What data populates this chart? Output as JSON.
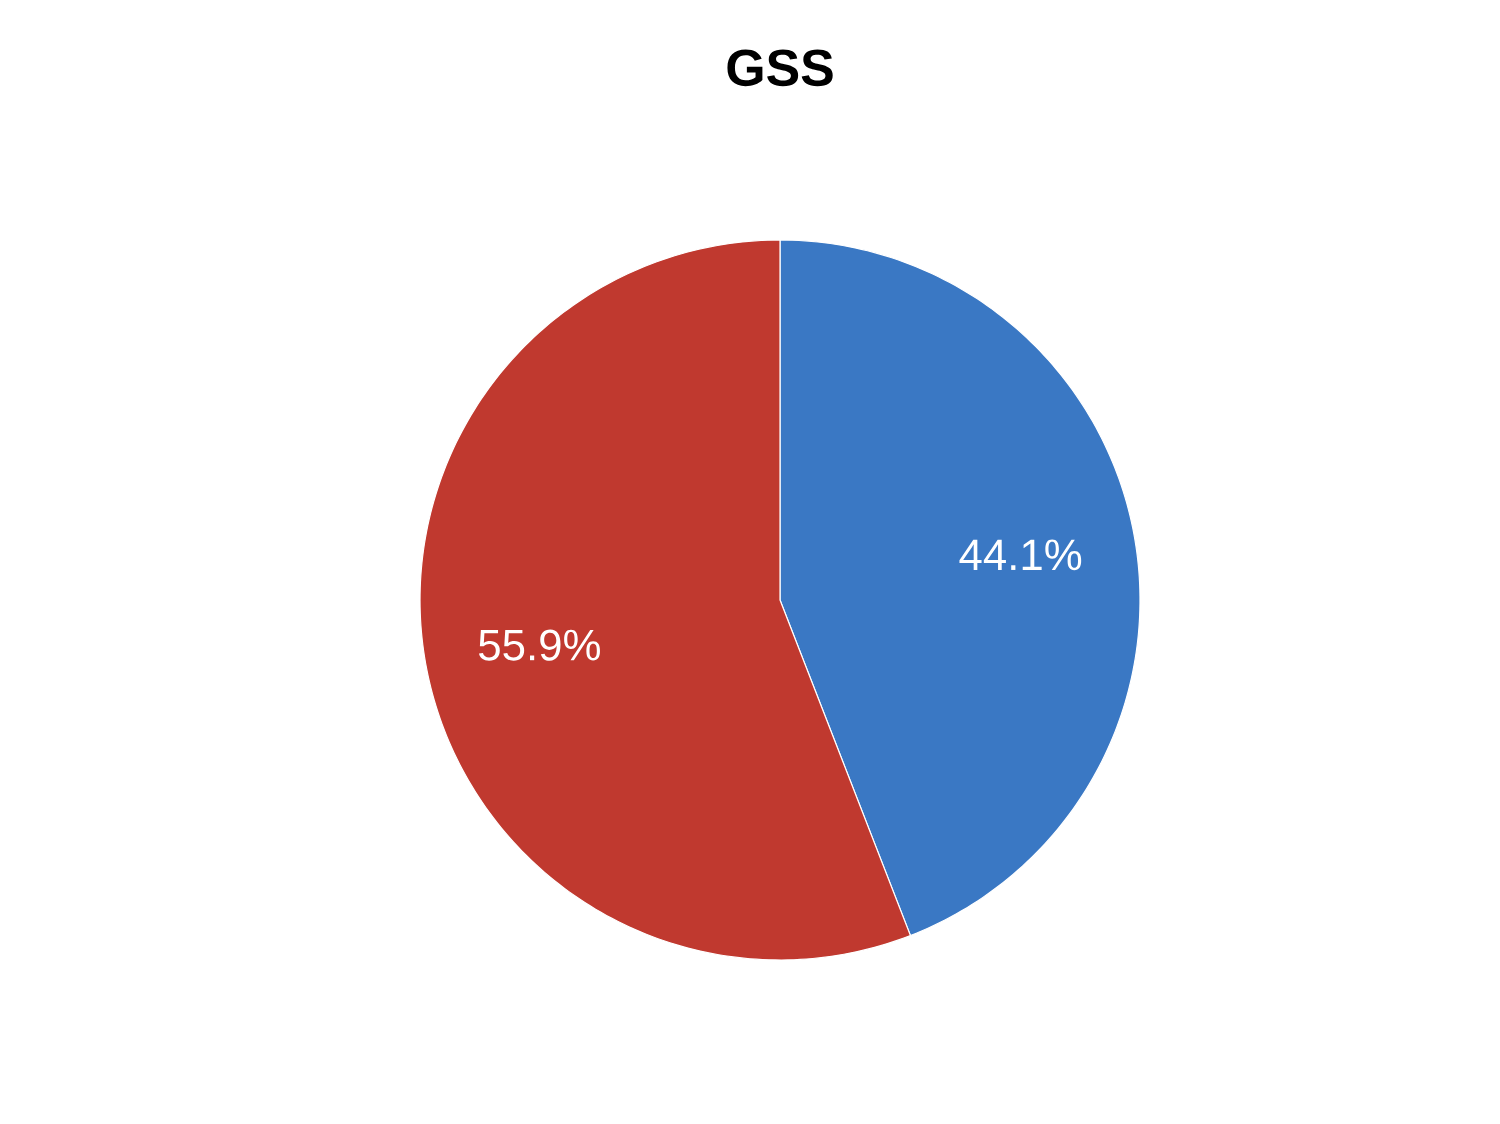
{
  "chart_data": {
    "type": "pie",
    "title": "GSS",
    "categories": [
      null,
      null
    ],
    "values": [
      44.1,
      55.9
    ],
    "colors": [
      "#3a78c4",
      "#c0392f"
    ],
    "value_labels": [
      "44.1%",
      "55.9%"
    ]
  }
}
